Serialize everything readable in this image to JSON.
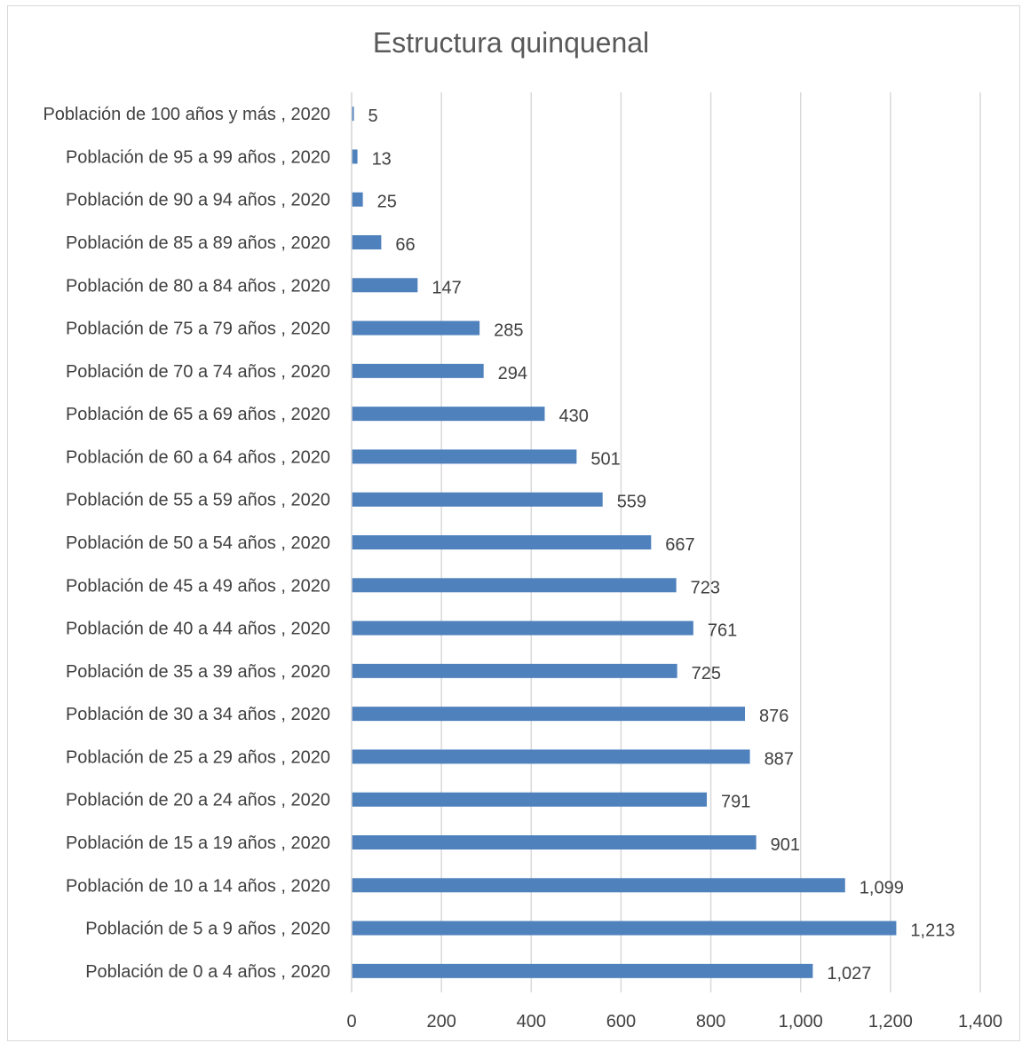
{
  "chart_data": {
    "type": "bar",
    "orientation": "horizontal",
    "title": "Estructura quinquenal",
    "xlabel": "",
    "ylabel": "",
    "xlim": [
      0,
      1400
    ],
    "x_ticks": [
      0,
      200,
      400,
      600,
      800,
      1000,
      1200,
      1400
    ],
    "x_tick_labels": [
      "0",
      "200",
      "400",
      "600",
      "800",
      "1,000",
      "1,200",
      "1,400"
    ],
    "grid": true,
    "legend": "none",
    "bar_color": "#4f81bd",
    "categories": [
      "Población de 0 a 4 años , 2020",
      "Población de 5 a 9 años , 2020",
      "Población de 10 a 14 años , 2020",
      "Población de 15 a 19 años , 2020",
      "Población de 20 a 24 años , 2020",
      "Población de 25 a 29 años , 2020",
      "Población de 30 a 34 años , 2020",
      "Población de 35 a 39 años , 2020",
      "Población de 40 a 44 años , 2020",
      "Población de 45 a 49 años , 2020",
      "Población de 50 a 54 años , 2020",
      "Población de 55 a 59 años , 2020",
      "Población de 60 a 64 años , 2020",
      "Población de 65 a 69 años , 2020",
      "Población de 70 a 74 años , 2020",
      "Población de 75 a 79 años , 2020",
      "Población de 80 a 84 años , 2020",
      "Población de 85 a 89 años , 2020",
      "Población de 90 a 94 años , 2020",
      "Población de 95 a 99 años , 2020",
      "Población de 100 años y más , 2020"
    ],
    "values": [
      1027,
      1213,
      1099,
      901,
      791,
      887,
      876,
      725,
      761,
      723,
      667,
      559,
      501,
      430,
      294,
      285,
      147,
      66,
      25,
      13,
      5
    ],
    "data_labels": [
      "1,027",
      "1,213",
      "1,099",
      "901",
      "791",
      "887",
      "876",
      "725",
      "761",
      "723",
      "667",
      "559",
      "501",
      "430",
      "294",
      "285",
      "147",
      "66",
      "25",
      "13",
      "5"
    ]
  }
}
